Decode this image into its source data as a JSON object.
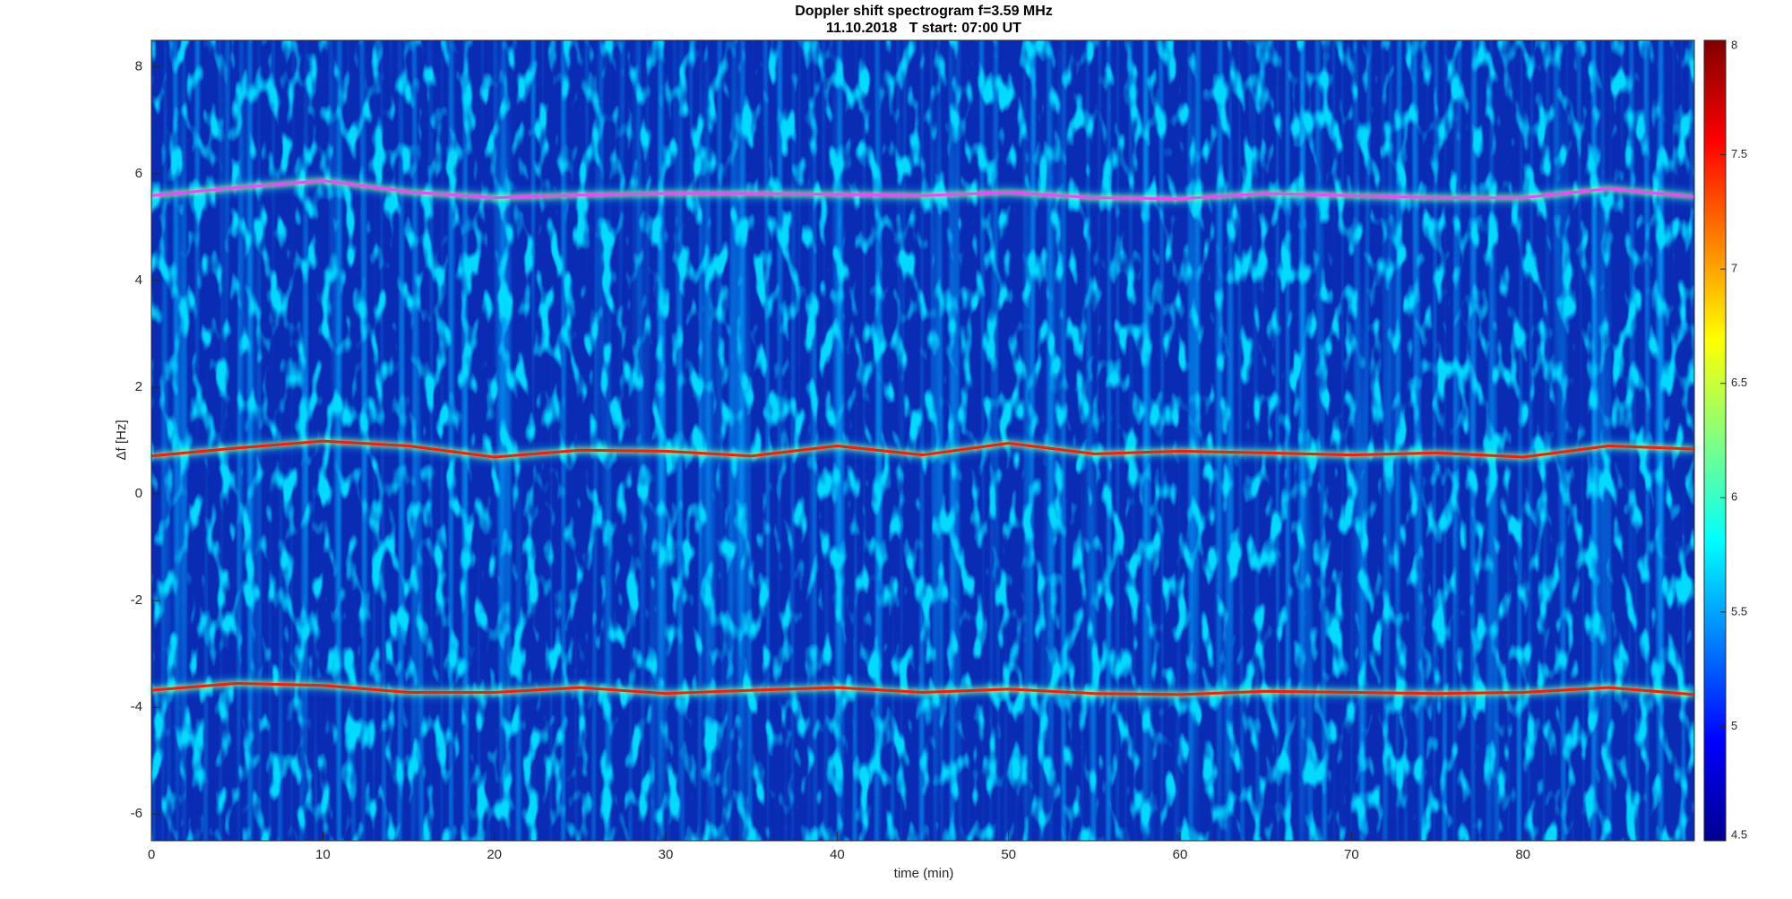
{
  "chart_data": {
    "type": "spectrogram",
    "title": "Doppler shift spectrogram f=3.59 MHz",
    "subtitle": "11.10.2018   T start: 07:00 UT",
    "x_label": "time (min)",
    "y_label": "Δf [Hz]",
    "xlim": [
      0,
      90
    ],
    "xticks": [
      0,
      10,
      20,
      30,
      40,
      50,
      60,
      70,
      80
    ],
    "ylim": [
      -6.5,
      8.5
    ],
    "yticks": [
      -6,
      -4,
      -2,
      0,
      2,
      4,
      6,
      8
    ],
    "colormap": "jet",
    "clim": [
      4.5,
      8
    ],
    "cticks": [
      4.5,
      5,
      5.5,
      6,
      6.5,
      7,
      7.5,
      8
    ],
    "x": [
      0,
      5,
      10,
      15,
      20,
      25,
      30,
      35,
      40,
      45,
      50,
      55,
      60,
      65,
      70,
      75,
      80,
      85,
      90
    ],
    "series": [
      {
        "color": "#ff40ff",
        "values": [
          5.59,
          5.74,
          5.87,
          5.66,
          5.55,
          5.6,
          5.63,
          5.63,
          5.61,
          5.59,
          5.65,
          5.55,
          5.53,
          5.63,
          5.59,
          5.55,
          5.55,
          5.72,
          5.57
        ]
      },
      {
        "color": "#ff1a00",
        "values": [
          0.71,
          0.86,
          0.99,
          0.9,
          0.69,
          0.82,
          0.8,
          0.71,
          0.9,
          0.73,
          0.95,
          0.75,
          0.8,
          0.77,
          0.73,
          0.77,
          0.69,
          0.9,
          0.84
        ]
      },
      {
        "color": "#ff1a00",
        "values": [
          -3.68,
          -3.55,
          -3.59,
          -3.72,
          -3.72,
          -3.63,
          -3.74,
          -3.68,
          -3.63,
          -3.72,
          -3.66,
          -3.74,
          -3.76,
          -3.7,
          -3.72,
          -3.74,
          -3.72,
          -3.63,
          -3.76
        ]
      }
    ]
  }
}
